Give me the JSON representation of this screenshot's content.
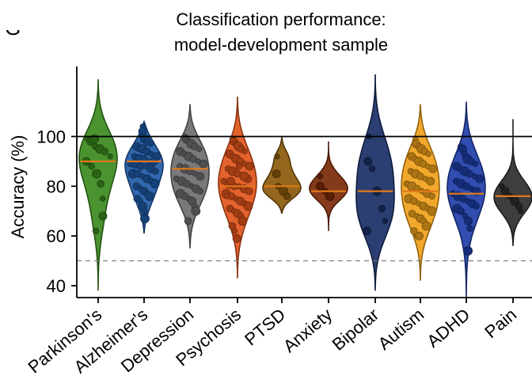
{
  "corner_mark": "G",
  "chart_data": {
    "type": "violin",
    "title_lines": [
      "Classification performance:",
      "model-development sample"
    ],
    "title": "Classification performance: model-development sample",
    "ylabel": "Accuracy (%)",
    "xlabel": "",
    "ylim": [
      36,
      125
    ],
    "yticks": [
      40,
      60,
      80,
      100
    ],
    "reference_lines": [
      {
        "y": 100,
        "style": "solid"
      },
      {
        "y": 50,
        "style": "dashed"
      }
    ],
    "grid": false,
    "categories": [
      "Parkinson's",
      "Alzheimer's",
      "Depression",
      "Psychosis",
      "PTSD",
      "Anxiety",
      "Bipolar",
      "Autism",
      "ADHD",
      "Pain"
    ],
    "series": [
      {
        "category": "Parkinson's",
        "color": "#3b8a1e",
        "median": 90,
        "range": [
          38,
          123
        ],
        "points": [
          99,
          98,
          96,
          95,
          94,
          92,
          90,
          88,
          85,
          81,
          75,
          68,
          62,
          99
        ]
      },
      {
        "category": "Alzheimer's",
        "color": "#1f5aa6",
        "median": 90,
        "range": [
          61,
          106
        ],
        "points": [
          104,
          102,
          100,
          99,
          98,
          97,
          96,
          95,
          95,
          94,
          93,
          92,
          92,
          91,
          91,
          90,
          90,
          89,
          89,
          88,
          88,
          87,
          86,
          85,
          85,
          84,
          83,
          82,
          81,
          80,
          79,
          78,
          77,
          76,
          75,
          74,
          72,
          70,
          67
        ]
      },
      {
        "category": "Depression",
        "color": "#6e6e6e",
        "median": 87,
        "range": [
          55,
          113
        ],
        "points": [
          100,
          99,
          98,
          97,
          96,
          95,
          94,
          93,
          92,
          91,
          90,
          89,
          88,
          87,
          86,
          85,
          84,
          83,
          82,
          81,
          80,
          79,
          78,
          77,
          76,
          75,
          74,
          72,
          70,
          66
        ]
      },
      {
        "category": "Psychosis",
        "color": "#e2551b",
        "median": 80,
        "range": [
          43,
          116
        ],
        "points": [
          99,
          98,
          97,
          96,
          95,
          94,
          93,
          92,
          91,
          90,
          89,
          88,
          87,
          86,
          85,
          84,
          83,
          82,
          81,
          80,
          80,
          79,
          78,
          77,
          76,
          75,
          74,
          73,
          72,
          71,
          70,
          69,
          68,
          66,
          64,
          62,
          59,
          88,
          84,
          78,
          76,
          82
        ]
      },
      {
        "category": "PTSD",
        "color": "#8a5a0a",
        "median": 80,
        "range": [
          69,
          100
        ],
        "points": [
          92,
          85,
          80,
          78,
          76
        ]
      },
      {
        "category": "Anxiety",
        "color": "#7a2a08",
        "median": 78,
        "range": [
          62,
          98
        ],
        "points": [
          84,
          80,
          78,
          76
        ]
      },
      {
        "category": "Bipolar",
        "color": "#1a2f66",
        "median": 78,
        "range": [
          38,
          125
        ],
        "points": [
          100,
          90,
          87,
          78,
          71,
          66,
          62
        ]
      },
      {
        "category": "Autism",
        "color": "#f0a11a",
        "median": 78,
        "range": [
          42,
          113
        ],
        "points": [
          99,
          97,
          96,
          95,
          94,
          93,
          92,
          91,
          90,
          89,
          88,
          87,
          86,
          85,
          84,
          83,
          82,
          81,
          80,
          79,
          78,
          77,
          76,
          75,
          74,
          73,
          72,
          71,
          70,
          69,
          68,
          67,
          66,
          64,
          62,
          60,
          60
        ]
      },
      {
        "category": "ADHD",
        "color": "#1f3ea8",
        "median": 77,
        "range": [
          35,
          114
        ],
        "points": [
          96,
          95,
          93,
          91,
          90,
          89,
          88,
          87,
          86,
          85,
          84,
          83,
          82,
          81,
          80,
          79,
          78,
          77,
          76,
          75,
          74,
          73,
          72,
          71,
          70,
          68,
          66,
          63,
          54
        ]
      },
      {
        "category": "Pain",
        "color": "#2e2e2e",
        "median": 76,
        "range": [
          56,
          107
        ],
        "points": [
          80,
          78,
          76,
          74,
          72,
          70
        ]
      }
    ]
  }
}
